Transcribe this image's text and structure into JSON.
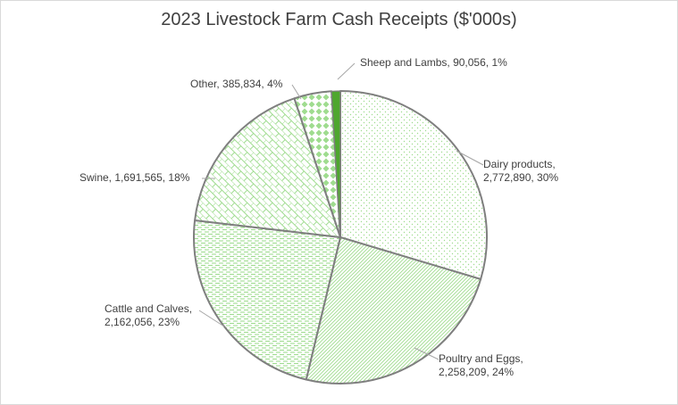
{
  "chart_data": {
    "type": "pie",
    "title": "2023 Livestock Farm Cash Receipts ($'000s)",
    "legend": "none",
    "slices": [
      {
        "name": "Dairy products",
        "value": 2772890,
        "percent": "30%",
        "value_text": "2,772,890",
        "label_lines": [
          "Dairy products,",
          "2,772,890, 30%"
        ],
        "pattern": "dots"
      },
      {
        "name": "Poultry and Eggs",
        "value": 2258209,
        "percent": "24%",
        "value_text": "2,258,209",
        "label_lines": [
          "Poultry and Eggs,",
          "2,258,209, 24%"
        ],
        "pattern": "diag"
      },
      {
        "name": "Cattle and Calves",
        "value": 2162056,
        "percent": "23%",
        "value_text": "2,162,056",
        "label_lines": [
          "Cattle and Calves,",
          "2,162,056, 23%"
        ],
        "pattern": "hdash"
      },
      {
        "name": "Swine",
        "value": 1691565,
        "percent": "18%",
        "value_text": "1,691,565",
        "label_lines": [
          "Swine,  1,691,565, 18%"
        ],
        "pattern": "brick"
      },
      {
        "name": "Other",
        "value": 385834,
        "percent": "4%",
        "value_text": "385,834",
        "label_lines": [
          "Other,  385,834, 4%"
        ],
        "pattern": "diamond"
      },
      {
        "name": "Sheep and Lambs",
        "value": 90056,
        "percent": "1%",
        "value_text": "90,056",
        "label_lines": [
          "Sheep and Lambs,        90,056, 1%"
        ],
        "pattern": "solid"
      }
    ],
    "colors": {
      "outline": "#7f7f7f",
      "pattern_green": "#9fdc8f",
      "solid_green": "#4ea72e",
      "leader": "#a6a6a6"
    }
  }
}
